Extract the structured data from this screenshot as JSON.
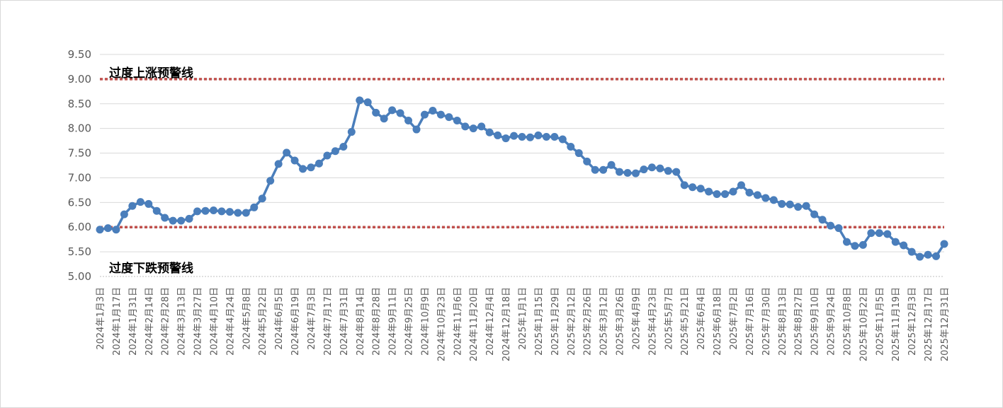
{
  "chart_data": {
    "type": "line",
    "title": "",
    "xlabel": "",
    "ylabel": "",
    "ylim": [
      5.0,
      9.5
    ],
    "y_ticks": [
      "9.50",
      "9.00",
      "8.50",
      "8.00",
      "7.50",
      "7.00",
      "6.50",
      "6.00",
      "5.50",
      "5.00"
    ],
    "grid": true,
    "legend": "none",
    "x_tick_labels": [
      "2024年1月3日",
      "2024年1月17日",
      "2024年1月31日",
      "2024年2月14日",
      "2024年2月28日",
      "2024年3月13日",
      "2024年3月27日",
      "2024年4月10日",
      "2024年4月24日",
      "2024年5月8日",
      "2024年5月22日",
      "2024年6月5日",
      "2024年6月19日",
      "2024年7月3日",
      "2024年7月17日",
      "2024年7月31日",
      "2024年8月14日",
      "2024年8月28日",
      "2024年9月11日",
      "2024年9月25日",
      "2024年10月9日",
      "2024年10月23日",
      "2024年11月6日",
      "2024年11月20日",
      "2024年12月4日",
      "2024年12月18日",
      "2025年1月1日",
      "2025年1月15日",
      "2025年1月29日",
      "2025年2月12日",
      "2025年2月26日",
      "2025年3月12日",
      "2025年3月26日",
      "2025年4月9日",
      "2025年4月23日",
      "2025年5月7日",
      "2025年5月21日",
      "2025年6月4日",
      "2025年6月18日",
      "2025年7月2日",
      "2025年7月16日",
      "2025年7月30日",
      "2025年8月13日",
      "2025年8月27日",
      "2025年9月10日",
      "2025年9月24日",
      "2025年10月8日",
      "2025年10月22日",
      "2025年11月5日",
      "2025年11月19日",
      "2025年12月3日",
      "2025年12月17日",
      "2025年12月31日"
    ],
    "series": [
      {
        "name": "",
        "color": "#4a7ebb",
        "values": [
          5.95,
          5.98,
          5.95,
          6.26,
          6.43,
          6.51,
          6.47,
          6.33,
          6.19,
          6.13,
          6.13,
          6.17,
          6.32,
          6.33,
          6.34,
          6.32,
          6.31,
          6.29,
          6.29,
          6.4,
          6.58,
          6.94,
          7.28,
          7.51,
          7.35,
          7.18,
          7.21,
          7.29,
          7.45,
          7.54,
          7.63,
          7.93,
          8.57,
          8.53,
          8.32,
          8.2,
          8.37,
          8.31,
          8.16,
          7.98,
          8.28,
          8.36,
          8.28,
          8.23,
          8.16,
          8.04,
          8.0,
          8.04,
          7.92,
          7.86,
          7.8,
          7.85,
          7.83,
          7.82,
          7.86,
          7.83,
          7.83,
          7.78,
          7.63,
          7.5,
          7.33,
          7.16,
          7.16,
          7.26,
          7.12,
          7.1,
          7.09,
          7.17,
          7.21,
          7.19,
          7.14,
          7.12,
          6.85,
          6.81,
          6.78,
          6.72,
          6.67,
          6.67,
          6.72,
          6.85,
          6.7,
          6.65,
          6.59,
          6.55,
          6.47,
          6.46,
          6.41,
          6.43,
          6.26,
          6.15,
          6.03,
          5.98,
          5.7,
          5.62,
          5.64,
          5.88,
          5.88,
          5.86,
          5.7,
          5.63,
          5.5,
          5.4,
          5.44,
          5.41,
          5.66
        ]
      }
    ],
    "reference_lines": [
      {
        "value": 9.0,
        "label": "过度上涨预警线",
        "color": "#c0504d"
      },
      {
        "value": 6.0,
        "label": "过度下跌预警线",
        "color": "#c0504d"
      }
    ]
  }
}
